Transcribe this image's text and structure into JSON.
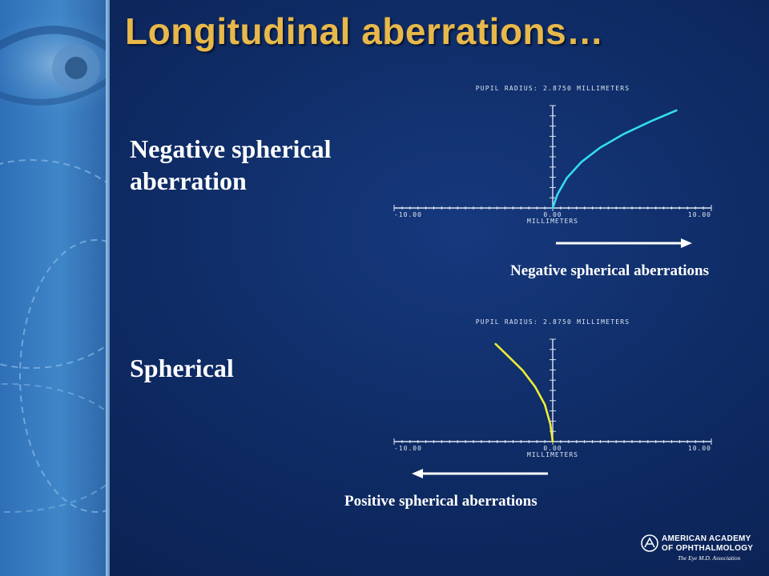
{
  "slide": {
    "title": "Longitudinal aberrations…",
    "label_negative": "Negative spherical aberration",
    "label_spherical": "Spherical",
    "caption_negative": "Negative spherical aberrations",
    "caption_positive": "Positive spherical aberrations",
    "logo": {
      "line1": "AMERICAN ACADEMY",
      "line2": "OF OPHTHALMOLOGY",
      "tagline": "The Eye M.D. Association"
    }
  },
  "colors": {
    "title": "#e8b84a",
    "series_top": "#33ddee",
    "series_bottom": "#eeee33",
    "axis": "#dde4f2",
    "arrow": "#ffffff"
  },
  "chart_data": [
    {
      "type": "line",
      "title": "PUPIL RADIUS: 2.8750 MILLIMETERS",
      "xlabel": "MILLIMETERS",
      "xlim": [
        -10,
        10
      ],
      "ylim": [
        0,
        1
      ],
      "x_tick_labels": [
        "-10.00",
        "0.00",
        "10.00"
      ],
      "grid": false,
      "series": [
        {
          "color": "#33ddee",
          "x": [
            0,
            0.3,
            0.9,
            1.8,
            3.0,
            4.5,
            6.2,
            7.8
          ],
          "y": [
            0,
            0.14,
            0.31,
            0.47,
            0.62,
            0.76,
            0.89,
            1.0
          ]
        }
      ]
    },
    {
      "type": "line",
      "title": "PUPIL RADIUS: 2.8750 MILLIMETERS",
      "xlabel": "MILLIMETERS",
      "xlim": [
        -10,
        10
      ],
      "ylim": [
        0,
        1
      ],
      "x_tick_labels": [
        "-10.00",
        "0.00",
        "10.00"
      ],
      "grid": false,
      "series": [
        {
          "color": "#eeee33",
          "x": [
            0,
            -0.15,
            -0.5,
            -1.1,
            -1.9,
            -2.9,
            -3.6
          ],
          "y": [
            0,
            0.18,
            0.38,
            0.56,
            0.73,
            0.89,
            1.0
          ]
        }
      ]
    }
  ]
}
